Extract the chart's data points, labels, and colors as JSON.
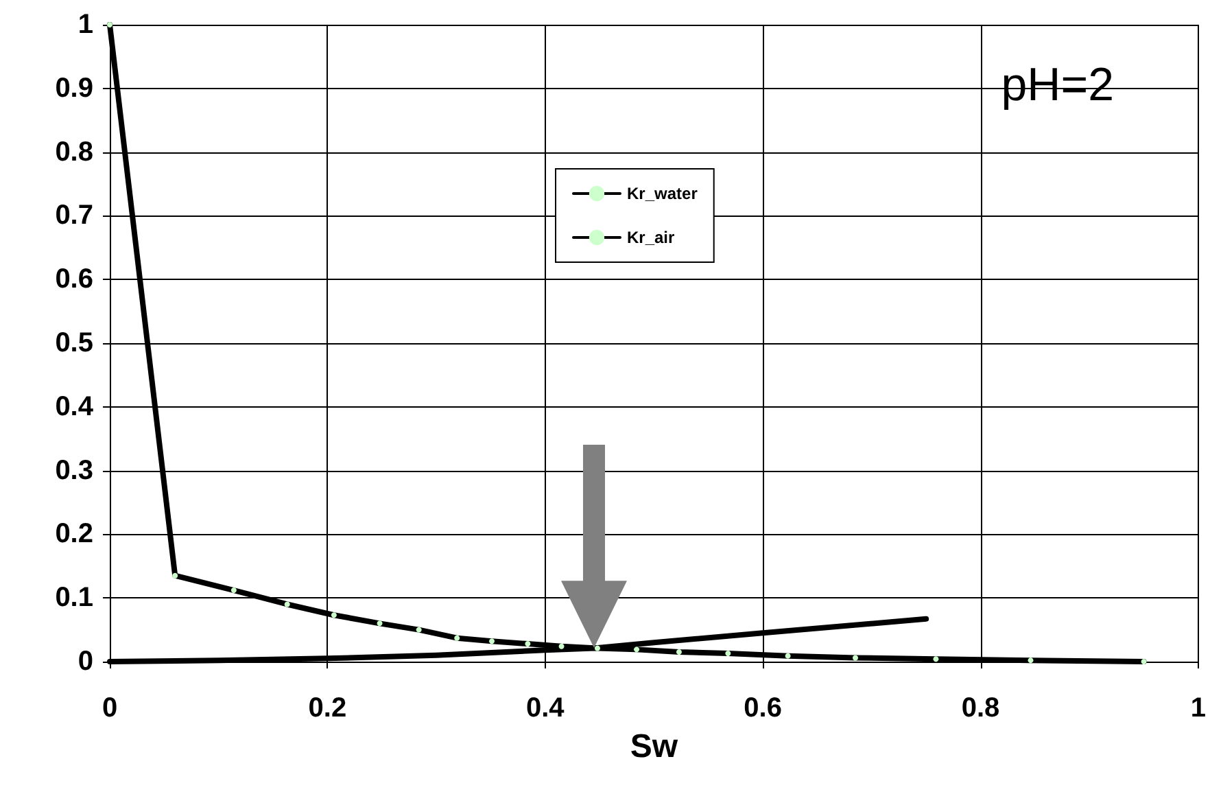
{
  "chart_data": {
    "type": "line",
    "xlabel": "Sw",
    "xlim": [
      0,
      1
    ],
    "xticks": [
      0,
      0.2,
      0.4,
      0.6,
      0.8,
      1
    ],
    "ylim": [
      0,
      1
    ],
    "yticks": [
      0,
      0.1,
      0.2,
      0.3,
      0.4,
      0.5,
      0.6,
      0.7,
      0.8,
      0.9,
      1
    ],
    "grid": true,
    "legend": "top",
    "line_style": "solid",
    "annotations": [
      "pH=2"
    ],
    "series": [
      {
        "name": "Kr_water",
        "color": "#000000",
        "marker": "none",
        "x": [
          0,
          0.1,
          0.2,
          0.3,
          0.4,
          0.445,
          0.5,
          0.6,
          0.75
        ],
        "values": [
          0,
          0.002,
          0.005,
          0.01,
          0.018,
          0.021,
          0.03,
          0.045,
          0.067
        ]
      },
      {
        "name": "Kr_air",
        "color": "#000000",
        "marker": "circle",
        "x": [
          0,
          0.06,
          0.114,
          0.163,
          0.206,
          0.248,
          0.284,
          0.319,
          0.351,
          0.384,
          0.415,
          0.448,
          0.484,
          0.523,
          0.568,
          0.623,
          0.685,
          0.759,
          0.846,
          0.95
        ],
        "values": [
          1,
          0.135,
          0.112,
          0.09,
          0.073,
          0.06,
          0.05,
          0.037,
          0.032,
          0.028,
          0.024,
          0.021,
          0.019,
          0.015,
          0.013,
          0.009,
          0.006,
          0.004,
          0.002,
          0
        ]
      }
    ]
  }
}
